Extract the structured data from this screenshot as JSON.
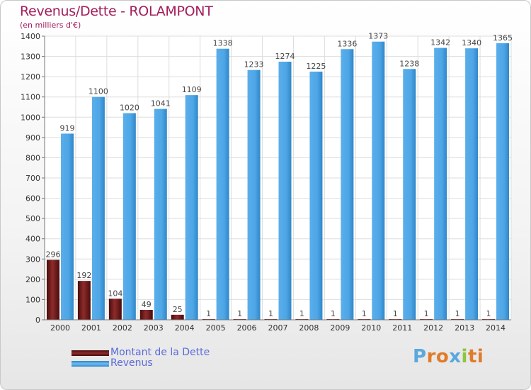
{
  "chart_data": {
    "type": "bar",
    "title": "Revenus/Dette - ROLAMPONT",
    "subtitle": "(en milliers d'€)",
    "categories": [
      "2000",
      "2001",
      "2002",
      "2003",
      "2004",
      "2005",
      "2006",
      "2007",
      "2008",
      "2009",
      "2010",
      "2011",
      "2012",
      "2013",
      "2014"
    ],
    "series": [
      {
        "name": "Montant de la Dette",
        "color": "#7a1a1a",
        "values": [
          296,
          192,
          104,
          49,
          25,
          1,
          1,
          1,
          1,
          1,
          1,
          1,
          1,
          1,
          1
        ]
      },
      {
        "name": "Revenus",
        "color": "#4aa3e4",
        "values": [
          919,
          1100,
          1020,
          1041,
          1109,
          1338,
          1233,
          1274,
          1225,
          1336,
          1373,
          1238,
          1342,
          1340,
          1365
        ]
      }
    ],
    "ylim": [
      0,
      1400
    ],
    "yticks": [
      0,
      100,
      200,
      300,
      400,
      500,
      600,
      700,
      800,
      900,
      1000,
      1100,
      1200,
      1300,
      1400
    ],
    "grid": true,
    "legend_position": "bottom-left"
  },
  "legend": {
    "items": [
      {
        "label": "Montant de la Dette",
        "color": "#7a1a1a"
      },
      {
        "label": "Revenus",
        "color": "#4aa3e4"
      }
    ]
  },
  "logo": {
    "text": "Proxiti",
    "letter_colors": [
      "#5aa8de",
      "#e07b2a",
      "#e07b2a",
      "#5aa8de",
      "#8cc63e",
      "#e07b2a",
      "#e07b2a"
    ]
  }
}
